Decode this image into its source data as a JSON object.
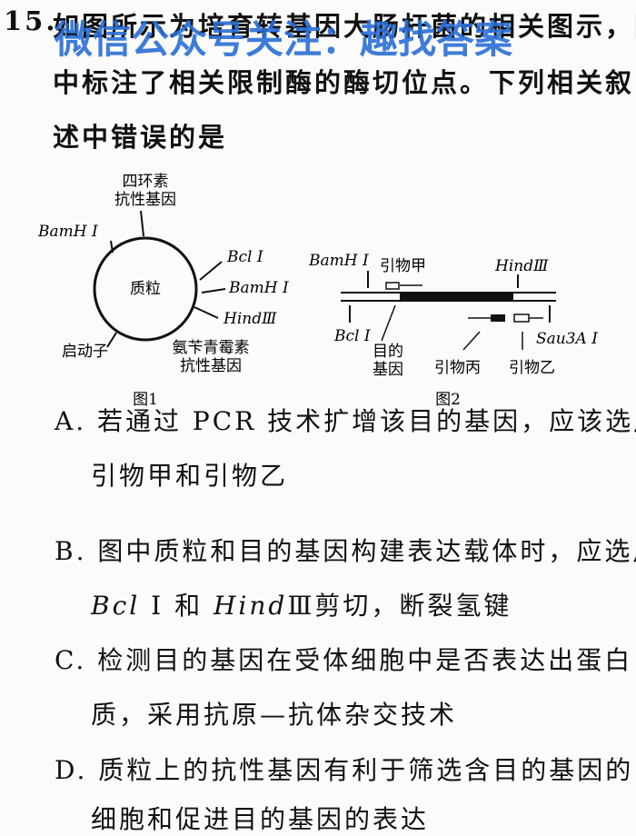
{
  "question": {
    "number": "15.",
    "stem": [
      "如图所示为培育转基因大肠杆菌的相关图示，图",
      "中标注了相关限制酶的酶切位点。下列相关叙",
      "述中错误的是"
    ]
  },
  "watermark": "微信公众号关注：趣找答案",
  "figure1": {
    "tet": [
      "四环素",
      "抗性基因"
    ],
    "bamh_left": "BamH Ⅰ",
    "plasmid": "质粒",
    "bcl": "Bcl Ⅰ",
    "bamh_right": "BamH Ⅰ",
    "hind": "HindⅢ",
    "promoter": "启动子",
    "amp": [
      "氨苄青霉素",
      "抗性基因"
    ],
    "caption": "图1"
  },
  "figure2": {
    "bamh": "BamH Ⅰ",
    "primer_a": "引物甲",
    "hind": "HindⅢ",
    "bcl": "Bcl Ⅰ",
    "gene": [
      "目的",
      "基因"
    ],
    "primer_c": "引物丙",
    "primer_b": "引物乙",
    "sau": "Sau3A Ⅰ",
    "caption": "图2"
  },
  "options": [
    {
      "lines": [
        "A. 若通过 PCR 技术扩增该目的基因，应该选用",
        "引物甲和引物乙"
      ]
    },
    {
      "lines": [
        "B. 图中质粒和目的基因构建表达载体时，应选用"
      ],
      "line2": [
        "Bcl",
        " Ⅰ 和 ",
        "Hind",
        "Ⅲ剪切，断裂氢键"
      ]
    },
    {
      "lines": [
        "C. 检测目的基因在受体细胞中是否表达出蛋白",
        "质，采用抗原—抗体杂交技术"
      ]
    },
    {
      "lines": [
        "D. 质粒上的抗性基因有利于筛选含目的基因的",
        "细胞和促进目的基因的表达"
      ]
    }
  ]
}
